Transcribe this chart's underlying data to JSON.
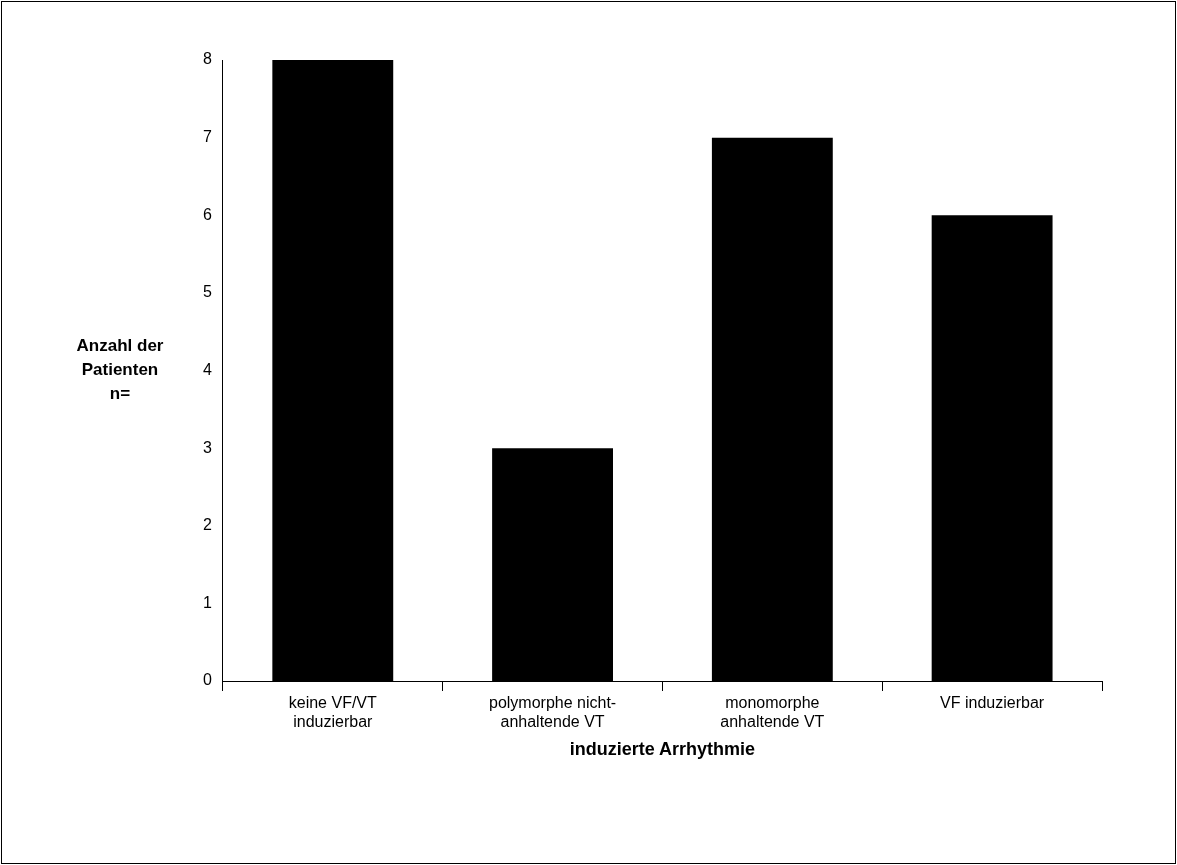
{
  "chart_data": {
    "type": "bar",
    "xlabel": "induzierte Arrhythmie",
    "ylabel": "Anzahl der Patienten n=",
    "categories": [
      "keine VF/VT induzierbar",
      "polymorphe nicht-anhaltende VT",
      "monomorphe anhaltende VT",
      "VF induzierbar"
    ],
    "values": [
      8,
      3,
      7,
      6
    ],
    "color": "#000000",
    "ylim": [
      0,
      8
    ],
    "yticks": [
      0,
      1,
      2,
      3,
      4,
      5,
      6,
      7,
      8
    ],
    "grid": false,
    "legend": false
  }
}
